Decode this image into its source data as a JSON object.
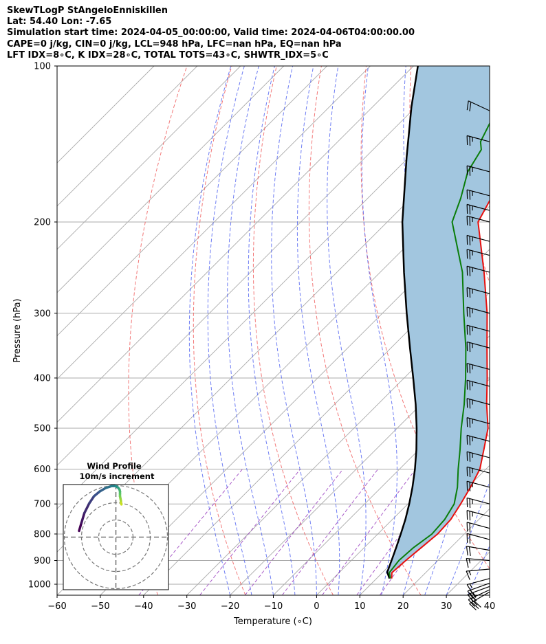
{
  "header": {
    "line1": "SkewTLogP StAngeloEnniskillen",
    "line2": "Lat: 54.40   Lon: -7.65",
    "line3": "Simulation start time: 2024-04-05_00:00:00, Valid time: 2024-04-06T04:00:00.00",
    "line4": "CAPE=0 j/kg, CIN=0 j/kg, LCL=948 hPa, LFC=nan hPa, EQ=nan hPa",
    "line5": "LFT IDX=8∘C, K IDX=28∘C, TOTAL TOTS=43∘C, SHWTR_IDX=5∘C"
  },
  "colors": {
    "temperature": "#e8100e",
    "dewpoint": "#0a7d0a",
    "parcel": "#000000",
    "cape_fill": "#a2c6df",
    "dry_adiabat": "#f06060",
    "moist_adiabat": "#4a5cf0",
    "mixing_ratio": "#9a3fc0",
    "isotherm": "#aaaaaa",
    "isobar": "#aaaaaa",
    "hodo_start": "#440154",
    "hodo_end": "#c9e020"
  },
  "chart_data": {
    "type": "line",
    "title": "",
    "xlabel": "Temperature (∘C)",
    "ylabel": "Pressure (hPa)",
    "xlim": [
      -60,
      40
    ],
    "ylim": [
      1050,
      100
    ],
    "yscale": "log",
    "x_ticks": [
      "−60",
      "−50",
      "−40",
      "−30",
      "−20",
      "−10",
      "0",
      "10",
      "20",
      "30",
      "40"
    ],
    "y_ticks": [
      "100",
      "200",
      "300",
      "400",
      "500",
      "600",
      "700",
      "800",
      "900",
      "1000"
    ],
    "grid": true,
    "series": [
      {
        "key": "temperature",
        "pressure": [
          975,
          950,
          900,
          850,
          800,
          750,
          700,
          650,
          600,
          550,
          500,
          450,
          400,
          350,
          300,
          250,
          200,
          180,
          160,
          140,
          120,
          110,
          100
        ],
        "values": [
          13.5,
          12.2,
          12.6,
          13.2,
          13.8,
          13.5,
          12.2,
          10.6,
          8.6,
          5.0,
          1.0,
          -4.8,
          -10.8,
          -17.8,
          -25.8,
          -36.0,
          -49.0,
          -51.5,
          -53.5,
          -54.8,
          -55.5,
          -56.0,
          -56.5
        ]
      },
      {
        "key": "dewpoint",
        "pressure": [
          975,
          950,
          900,
          850,
          800,
          750,
          700,
          650,
          600,
          550,
          500,
          450,
          400,
          350,
          300,
          250,
          200,
          180,
          160,
          145,
          140,
          120,
          100
        ],
        "values": [
          13.2,
          11.6,
          11.0,
          11.4,
          12.5,
          12.1,
          10.7,
          7.6,
          3.6,
          -0.5,
          -5.2,
          -10.0,
          -15.8,
          -22.7,
          -31.2,
          -41.0,
          -55.0,
          -58.5,
          -63.0,
          -65.0,
          -67.0,
          -71.0,
          -74.0
        ]
      },
      {
        "key": "parcel",
        "pressure": [
          975,
          948,
          900,
          850,
          800,
          750,
          700,
          650,
          600,
          550,
          500,
          450,
          400,
          350,
          300,
          250,
          200,
          150,
          120,
          100
        ],
        "values": [
          13.0,
          11.0,
          9.3,
          7.4,
          5.3,
          3.0,
          0.3,
          -2.8,
          -6.4,
          -10.6,
          -15.5,
          -21.2,
          -27.9,
          -35.6,
          -44.4,
          -54.5,
          -66.5,
          -80.5,
          -91.0,
          -99.0
        ]
      }
    ],
    "wind_barbs": {
      "pressure": [
        1035,
        1025,
        1010,
        995,
        975,
        935,
        900,
        860,
        820,
        780,
        740,
        700,
        650,
        610,
        570,
        530,
        490,
        450,
        415,
        385,
        350,
        325,
        300,
        275,
        250,
        232,
        218,
        200,
        190,
        178,
        160,
        140,
        122
      ],
      "speed_kt": [
        30,
        25,
        25,
        20,
        15,
        15,
        15,
        20,
        20,
        20,
        25,
        25,
        25,
        25,
        25,
        25,
        25,
        25,
        25,
        25,
        25,
        25,
        25,
        25,
        25,
        25,
        25,
        25,
        25,
        25,
        25,
        25,
        20
      ],
      "direction_deg": [
        240,
        245,
        250,
        250,
        255,
        265,
        275,
        280,
        285,
        285,
        285,
        285,
        285,
        285,
        285,
        285,
        285,
        285,
        285,
        285,
        285,
        285,
        285,
        285,
        285,
        285,
        285,
        285,
        285,
        285,
        285,
        285,
        295
      ]
    },
    "hodograph": {
      "title_line1": "Wind Profile",
      "title_line2": "10m/s increment",
      "u": [
        -3.5,
        -3.0,
        -2.4,
        -1.4,
        -0.4,
        0.8,
        2.0,
        3.2,
        4.1,
        4.6,
        4.9,
        5.0,
        5.0,
        5.0,
        5.1,
        5.2,
        5.2,
        5.3
      ],
      "v": [
        1.3,
        3.0,
        5.0,
        7.0,
        8.5,
        9.5,
        10.2,
        10.6,
        10.6,
        10.3,
        9.9,
        9.5,
        9.0,
        8.5,
        8.0,
        7.5,
        7.1,
        6.8
      ]
    }
  }
}
